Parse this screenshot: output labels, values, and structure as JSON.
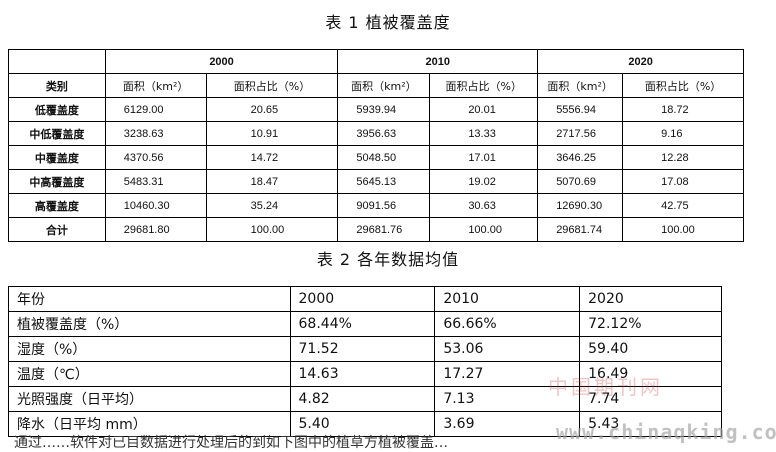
{
  "table1": {
    "title": "表 1 植被覆盖度",
    "years": [
      "2000",
      "2010",
      "2020"
    ],
    "category_header": "类别",
    "area_header": "面积（km²）",
    "ratio_header": "面积占比（%）",
    "rows": [
      {
        "label": "低覆盖度",
        "values": [
          "6129.00",
          "20.65",
          "5939.94",
          "20.01",
          "5556.94",
          "18.72"
        ]
      },
      {
        "label": "中低覆盖度",
        "values": [
          "3238.63",
          "10.91",
          "3956.63",
          "13.33",
          "2717.56",
          "9.16"
        ]
      },
      {
        "label": "中覆盖度",
        "values": [
          "4370.56",
          "14.72",
          "5048.50",
          "17.01",
          "3646.25",
          "12.28"
        ]
      },
      {
        "label": "中高覆盖度",
        "values": [
          "5483.31",
          "18.47",
          "5645.13",
          "19.02",
          "5070.69",
          "17.08"
        ]
      },
      {
        "label": "高覆盖度",
        "values": [
          "10460.30",
          "35.24",
          "9091.56",
          "30.63",
          "12690.30",
          "42.75"
        ]
      },
      {
        "label": "合计",
        "values": [
          "29681.80",
          "100.00",
          "29681.76",
          "100.00",
          "29681.74",
          "100.00"
        ]
      }
    ]
  },
  "table2": {
    "title": "表 2 各年数据均值",
    "header": [
      "年份",
      "2000",
      "2010",
      "2020"
    ],
    "rows": [
      [
        "植被覆盖度（%）",
        "68.44%",
        "66.66%",
        "72.12%"
      ],
      [
        "湿度（%）",
        "71.52",
        "53.06",
        "59.40"
      ],
      [
        "温度（℃）",
        "14.63",
        "17.27",
        "16.49"
      ],
      [
        "光照强度（日平均）",
        "4.82",
        "7.13",
        "7.74"
      ],
      [
        "降水（日平均 mm）",
        "5.40",
        "3.69",
        "5.43"
      ]
    ]
  },
  "watermark": {
    "text_cn": "中国期刊网",
    "text_url": "www.chinaqking.com"
  },
  "bottom_text": "通过……软件对已目数据进行处理后的到如下图中的植草方植被覆盖…"
}
